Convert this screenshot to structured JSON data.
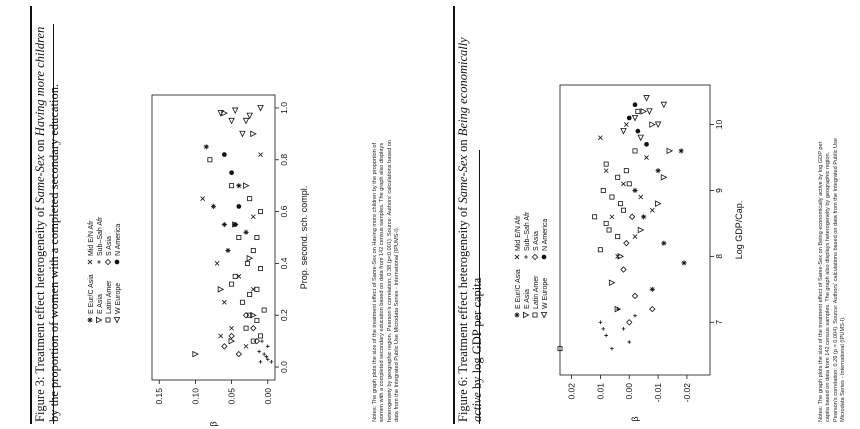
{
  "figure3": {
    "title_line1": "Figure 3: Treatment effect heterogeneity of ",
    "title_italic1": "Same-Sex",
    "title_mid1": " on ",
    "title_italic2": "Having more children",
    "title_line2": "by the proportion of women with a completed secondary education.",
    "notes": [
      "Notes: The graph plots the size of the treatment effect of Same-Sex on Having more children by the proportion of",
      "women with a completed secondary education based on data from 142 census samples. The graph also displays",
      "heterogeneity by geographic region. Pearson's correlation: 0.38 (p<0.001). Source: Authors' calculations based on",
      "data from the Integrated Public Use Microdata Series - International (IPUMS-I)."
    ],
    "chart_data": {
      "type": "scatter",
      "xlabel": "Prop. second. sch. compl.",
      "ylabel": "β",
      "xlim": [
        -0.05,
        1.05
      ],
      "ylim": [
        -0.01,
        0.16
      ],
      "xticks": [
        "0.0",
        "0.2",
        "0.4",
        "0.6",
        "0.8",
        "1.0"
      ],
      "yticks": [
        "0.00",
        "0.05",
        "0.10",
        "0.15"
      ],
      "legend": [
        {
          "name": "E Eur/C Asia",
          "marker": "asterisk"
        },
        {
          "name": "Mid E/N Afr",
          "marker": "cross"
        },
        {
          "name": "E Asia",
          "marker": "triangle-down"
        },
        {
          "name": "Sub–Sah Afr",
          "marker": "plus"
        },
        {
          "name": "Latin Amer",
          "marker": "square"
        },
        {
          "name": "S Asia",
          "marker": "diamond"
        },
        {
          "name": "W Europe",
          "marker": "triangle-left"
        },
        {
          "name": "N America",
          "marker": "dot"
        }
      ],
      "series": [
        {
          "name": "E Eur/C Asia",
          "marker": "asterisk",
          "points": [
            [
              0.55,
              0.06
            ],
            [
              0.62,
              0.075
            ],
            [
              0.45,
              0.055
            ],
            [
              0.85,
              0.085
            ],
            [
              0.7,
              0.04
            ],
            [
              0.52,
              0.03
            ]
          ]
        },
        {
          "name": "Mid E/N Afr",
          "marker": "cross",
          "points": [
            [
              0.08,
              0.03
            ],
            [
              0.15,
              0.05
            ],
            [
              0.25,
              0.06
            ],
            [
              0.35,
              0.04
            ],
            [
              0.4,
              0.07
            ],
            [
              0.58,
              0.02
            ],
            [
              0.65,
              0.09
            ],
            [
              0.82,
              0.01
            ],
            [
              0.3,
              0.02
            ],
            [
              0.12,
              0.065
            ]
          ]
        },
        {
          "name": "E Asia",
          "marker": "triangle-down",
          "points": [
            [
              0.05,
              0.1
            ],
            [
              0.1,
              0.05
            ],
            [
              0.3,
              0.065
            ],
            [
              0.42,
              0.025
            ],
            [
              0.55,
              0.045
            ],
            [
              0.7,
              0.03
            ],
            [
              0.9,
              0.02
            ],
            [
              0.98,
              0.06
            ],
            [
              0.2,
              0.02
            ]
          ]
        },
        {
          "name": "Sub–Sah Afr",
          "marker": "plus",
          "points": [
            [
              0.02,
              0.01
            ],
            [
              0.03,
              0.0
            ],
            [
              0.05,
              0.005
            ],
            [
              0.06,
              0.012
            ],
            [
              0.04,
              0.002
            ],
            [
              0.08,
              0.0
            ],
            [
              0.1,
              0.008
            ],
            [
              0.02,
              -0.005
            ]
          ]
        },
        {
          "name": "Latin Amer",
          "marker": "square",
          "points": [
            [
              0.1,
              0.02
            ],
            [
              0.15,
              0.03
            ],
            [
              0.2,
              0.025
            ],
            [
              0.25,
              0.035
            ],
            [
              0.3,
              0.015
            ],
            [
              0.35,
              0.045
            ],
            [
              0.4,
              0.028
            ],
            [
              0.45,
              0.02
            ],
            [
              0.5,
              0.04
            ],
            [
              0.6,
              0.01
            ],
            [
              0.7,
              0.05
            ],
            [
              0.8,
              0.08
            ],
            [
              0.12,
              0.01
            ],
            [
              0.18,
              0.015
            ],
            [
              0.22,
              0.005
            ],
            [
              0.28,
              0.025
            ],
            [
              0.32,
              0.05
            ],
            [
              0.38,
              0.01
            ],
            [
              0.5,
              0.015
            ],
            [
              0.65,
              0.025
            ]
          ]
        },
        {
          "name": "S Asia",
          "marker": "diamond",
          "points": [
            [
              0.05,
              0.04
            ],
            [
              0.08,
              0.06
            ],
            [
              0.12,
              0.05
            ],
            [
              0.15,
              0.02
            ],
            [
              0.2,
              0.03
            ],
            [
              0.1,
              0.015
            ]
          ]
        },
        {
          "name": "W Europe",
          "marker": "triangle-left",
          "points": [
            [
              0.95,
              0.03
            ],
            [
              0.98,
              0.065
            ],
            [
              1.0,
              0.01
            ],
            [
              0.9,
              0.035
            ],
            [
              0.95,
              0.05
            ],
            [
              0.97,
              0.025
            ],
            [
              0.99,
              0.045
            ]
          ]
        },
        {
          "name": "N America",
          "marker": "dot",
          "points": [
            [
              0.75,
              0.05
            ],
            [
              0.82,
              0.06
            ],
            [
              0.62,
              0.04
            ],
            [
              0.55,
              0.045
            ]
          ]
        }
      ]
    }
  },
  "figure6": {
    "title_line1": "Figure 6: Treatment effect heterogeneity of ",
    "title_italic1": "Same-Sex",
    "title_mid1": " on ",
    "title_italic2": "Being economically",
    "title_line2_italic": "active",
    "title_line2": " by log GDP per capita",
    "notes": [
      "Notes: The graph plots the size of the treatment effect of Same-Sex on Being economically active by log GDP per",
      "capita based on data from 142 census samples. The graph also displays heterogeneity by geographic region.",
      "Pearson's correlation: 0.26 (p = 0.004). Source: Authors' calculations based on data from the Integrated Public Use",
      "Microdata Series - International (IPUMS-I)."
    ],
    "chart_data": {
      "type": "scatter",
      "xlabel": "Log GDP/Cap.",
      "ylabel": "β",
      "xlim": [
        6.2,
        10.6
      ],
      "ylim": [
        -0.028,
        0.024
      ],
      "xticks": [
        "7",
        "8",
        "9",
        "10"
      ],
      "yticks": [
        "0.02",
        "0.01",
        "0.00",
        "-0.01",
        "-0.02"
      ],
      "legend": [
        {
          "name": "E Eur/C Asia",
          "marker": "asterisk"
        },
        {
          "name": "Mid E/N Afr",
          "marker": "cross"
        },
        {
          "name": "E Asia",
          "marker": "triangle-down"
        },
        {
          "name": "Sub–Sah Afr",
          "marker": "plus"
        },
        {
          "name": "Latin Amer",
          "marker": "square"
        },
        {
          "name": "S Asia",
          "marker": "diamond"
        },
        {
          "name": "W Europe",
          "marker": "triangle-left"
        },
        {
          "name": "N America",
          "marker": "dot"
        }
      ],
      "series": [
        {
          "name": "E Eur/C Asia",
          "marker": "asterisk",
          "points": [
            [
              7.5,
              -0.008
            ],
            [
              8.2,
              -0.012
            ],
            [
              8.6,
              -0.005
            ],
            [
              9.0,
              -0.002
            ],
            [
              9.3,
              -0.01
            ],
            [
              9.6,
              -0.018
            ],
            [
              7.9,
              -0.019
            ]
          ]
        },
        {
          "name": "Mid E/N Afr",
          "marker": "cross",
          "points": [
            [
              8.0,
              0.004
            ],
            [
              8.3,
              -0.002
            ],
            [
              8.6,
              0.006
            ],
            [
              8.9,
              -0.004
            ],
            [
              9.1,
              0.002
            ],
            [
              9.3,
              0.008
            ],
            [
              9.5,
              -0.006
            ],
            [
              9.8,
              0.01
            ],
            [
              10.0,
              0.001
            ],
            [
              8.7,
              -0.008
            ]
          ]
        },
        {
          "name": "E Asia",
          "marker": "triangle-down",
          "points": [
            [
              7.2,
              0.004
            ],
            [
              7.6,
              0.006
            ],
            [
              8.0,
              0.003
            ],
            [
              8.4,
              -0.004
            ],
            [
              8.8,
              -0.01
            ],
            [
              9.2,
              -0.012
            ],
            [
              9.6,
              -0.014
            ],
            [
              10.0,
              -0.008
            ],
            [
              10.2,
              -0.005
            ]
          ]
        },
        {
          "name": "Sub–Sah Afr",
          "marker": "plus",
          "points": [
            [
              6.6,
              0.006
            ],
            [
              6.8,
              0.008
            ],
            [
              6.9,
              0.002
            ],
            [
              7.0,
              0.01
            ],
            [
              7.1,
              -0.002
            ],
            [
              6.7,
              0.0
            ],
            [
              7.2,
              0.004
            ],
            [
              6.9,
              0.009
            ]
          ]
        },
        {
          "name": "Latin Amer",
          "marker": "square",
          "points": [
            [
              8.1,
              0.01
            ],
            [
              8.3,
              0.004
            ],
            [
              8.5,
              0.008
            ],
            [
              8.7,
              0.002
            ],
            [
              8.9,
              0.006
            ],
            [
              9.1,
              0.0
            ],
            [
              9.2,
              0.004
            ],
            [
              9.4,
              0.008
            ],
            [
              9.6,
              -0.002
            ],
            [
              8.6,
              0.012
            ],
            [
              8.8,
              0.003
            ],
            [
              9.0,
              0.009
            ],
            [
              9.3,
              0.001
            ],
            [
              8.4,
              0.007
            ],
            [
              10.2,
              -0.003
            ],
            [
              6.6,
              0.024
            ]
          ]
        },
        {
          "name": "S Asia",
          "marker": "diamond",
          "points": [
            [
              7.0,
              0.0
            ],
            [
              7.4,
              -0.002
            ],
            [
              7.8,
              0.002
            ],
            [
              8.2,
              0.001
            ],
            [
              8.6,
              -0.001
            ],
            [
              7.2,
              -0.008
            ]
          ]
        },
        {
          "name": "W Europe",
          "marker": "triangle-left",
          "points": [
            [
              9.8,
              -0.004
            ],
            [
              10.0,
              -0.01
            ],
            [
              10.1,
              -0.002
            ],
            [
              10.2,
              -0.007
            ],
            [
              10.3,
              -0.012
            ],
            [
              9.9,
              0.002
            ],
            [
              10.4,
              -0.006
            ]
          ]
        },
        {
          "name": "N America",
          "marker": "dot",
          "points": [
            [
              9.7,
              -0.006
            ],
            [
              9.9,
              -0.003
            ],
            [
              10.1,
              0.0
            ],
            [
              10.3,
              -0.002
            ]
          ]
        }
      ]
    }
  }
}
